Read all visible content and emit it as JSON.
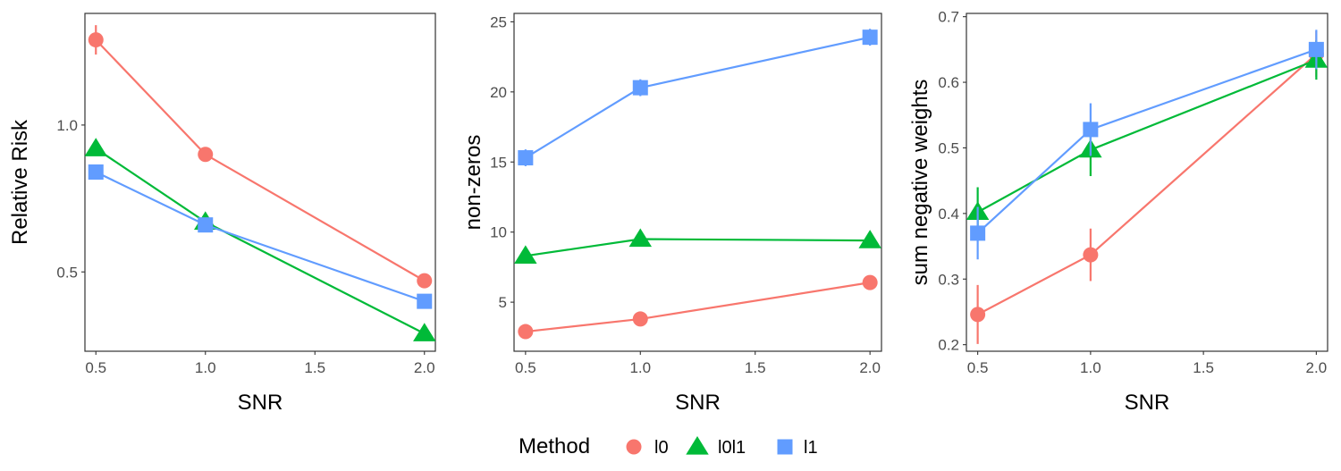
{
  "legend": {
    "title": "Method",
    "entries": [
      {
        "label": "l0",
        "color": "#F8766D",
        "shape": "circle"
      },
      {
        "label": "l0l1",
        "color": "#00BA38",
        "shape": "triangle"
      },
      {
        "label": "l1",
        "color": "#619CFF",
        "shape": "square"
      }
    ]
  },
  "chart_data": [
    {
      "type": "line",
      "ylabel": "Relative Risk",
      "xlabel": "SNR",
      "xlim": [
        0.45,
        2.05
      ],
      "ylim": [
        0.23,
        1.38
      ],
      "xticks": [
        0.5,
        1.0,
        1.5,
        2.0
      ],
      "xtick_labels": [
        "0.5",
        "1.0",
        "1.5",
        "2.0"
      ],
      "yticks": [
        0.5,
        1.0
      ],
      "ytick_labels": [
        "0.5",
        "1.0"
      ],
      "x": [
        0.5,
        1.0,
        2.0
      ],
      "series": [
        {
          "name": "l0",
          "values": [
            1.29,
            0.9,
            0.47
          ],
          "err": [
            0.05,
            0.02,
            0.02
          ]
        },
        {
          "name": "l0l1",
          "values": [
            0.92,
            0.67,
            0.29
          ],
          "err": [
            0.02,
            0.02,
            0.01
          ]
        },
        {
          "name": "l1",
          "values": [
            0.84,
            0.66,
            0.4
          ],
          "err": [
            0.02,
            0.02,
            0.01
          ]
        }
      ]
    },
    {
      "type": "line",
      "ylabel": "non-zeros",
      "xlabel": "SNR",
      "xlim": [
        0.45,
        2.05
      ],
      "ylim": [
        1.5,
        25.6
      ],
      "xticks": [
        0.5,
        1.0,
        1.5,
        2.0
      ],
      "xtick_labels": [
        "0.5",
        "1.0",
        "1.5",
        "2.0"
      ],
      "yticks": [
        5,
        10,
        15,
        20,
        25
      ],
      "ytick_labels": [
        "5",
        "10",
        "15",
        "20",
        "25"
      ],
      "x": [
        0.5,
        1.0,
        2.0
      ],
      "series": [
        {
          "name": "l0",
          "values": [
            2.9,
            3.8,
            6.4
          ],
          "err": [
            0.15,
            0.15,
            0.2
          ]
        },
        {
          "name": "l0l1",
          "values": [
            8.3,
            9.5,
            9.4
          ],
          "err": [
            0.2,
            0.2,
            0.2
          ]
        },
        {
          "name": "l1",
          "values": [
            15.3,
            20.3,
            23.9
          ],
          "err": [
            0.6,
            0.6,
            0.6
          ]
        }
      ]
    },
    {
      "type": "line",
      "ylabel": "sum negative weights",
      "xlabel": "SNR",
      "xlim": [
        0.45,
        2.05
      ],
      "ylim": [
        0.19,
        0.705
      ],
      "xticks": [
        0.5,
        1.0,
        1.5,
        2.0
      ],
      "xtick_labels": [
        "0.5",
        "1.0",
        "1.5",
        "2.0"
      ],
      "yticks": [
        0.2,
        0.3,
        0.4,
        0.5,
        0.6,
        0.7
      ],
      "ytick_labels": [
        "0.2",
        "0.3",
        "0.4",
        "0.5",
        "0.6",
        "0.7"
      ],
      "x": [
        0.5,
        1.0,
        2.0
      ],
      "series": [
        {
          "name": "l0",
          "values": [
            0.246,
            0.337,
            0.643
          ],
          "err": [
            0.045,
            0.04,
            0.035
          ]
        },
        {
          "name": "l0l1",
          "values": [
            0.402,
            0.497,
            0.634
          ],
          "err": [
            0.038,
            0.04,
            0.03
          ]
        },
        {
          "name": "l1",
          "values": [
            0.37,
            0.528,
            0.65
          ],
          "err": [
            0.04,
            0.04,
            0.03
          ]
        }
      ]
    }
  ]
}
